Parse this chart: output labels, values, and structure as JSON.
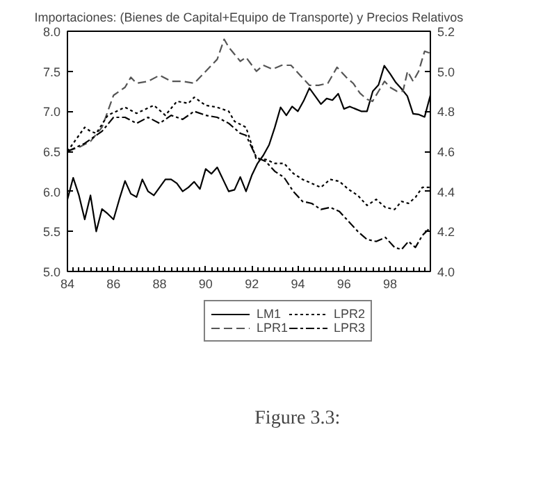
{
  "chart_data": {
    "type": "line",
    "title": "Importaciones: (Bienes de Capital+Equipo de Transporte) y Precios Relativos",
    "annotations": [
      "Figure 3.3:"
    ],
    "xlim": [
      84,
      99.75
    ],
    "xticks": [
      84,
      86,
      88,
      90,
      92,
      94,
      96,
      98
    ],
    "ylim": [
      5.0,
      8.0
    ],
    "yticks": [
      {
        "value": 5,
        "label": "5.0"
      },
      {
        "value": 5.5,
        "label": "5.5"
      },
      {
        "value": 6,
        "label": "6.0"
      },
      {
        "value": 6.5,
        "label": "6.5"
      },
      {
        "value": 7,
        "label": "7.0"
      },
      {
        "value": 7.5,
        "label": "7.5"
      },
      {
        "value": 8,
        "label": "8.0"
      }
    ],
    "y2lim": [
      4.0,
      5.2
    ],
    "y2ticks": [
      {
        "value": 4,
        "label": "4.0"
      },
      {
        "value": 4.2,
        "label": "4.2"
      },
      {
        "value": 4.4,
        "label": "4.4"
      },
      {
        "value": 4.6,
        "label": "4.6"
      },
      {
        "value": 4.8,
        "label": "4.8"
      },
      {
        "value": 5,
        "label": "5.0"
      },
      {
        "value": 5.2,
        "label": "5.2"
      }
    ],
    "grid": false,
    "legend": "bottom",
    "series": [
      {
        "name": "LM1",
        "color": "#000000",
        "line_style": "solid",
        "x": [
          84,
          84.25,
          84.5,
          84.75,
          85,
          85.25,
          85.5,
          85.75,
          86,
          86.25,
          86.5,
          86.75,
          87,
          87.25,
          87.5,
          87.75,
          88,
          88.25,
          88.5,
          88.75,
          89,
          89.25,
          89.5,
          89.75,
          90,
          90.25,
          90.5,
          90.75,
          91,
          91.25,
          91.5,
          91.75,
          92,
          92.25,
          92.5,
          92.75,
          93,
          93.25,
          93.5,
          93.75,
          94,
          94.25,
          94.5,
          94.75,
          95,
          95.25,
          95.5,
          95.75,
          96,
          96.25,
          96.5,
          96.75,
          97,
          97.25,
          97.5,
          97.75,
          98,
          98.25,
          98.5,
          98.75,
          99,
          99.25,
          99.5,
          99.75
        ],
        "values": [
          5.9,
          6.17,
          5.95,
          5.65,
          5.95,
          5.5,
          5.78,
          5.72,
          5.65,
          5.9,
          6.13,
          5.97,
          5.93,
          6.15,
          6.0,
          5.95,
          6.05,
          6.15,
          6.15,
          6.1,
          6.0,
          6.05,
          6.12,
          6.03,
          6.28,
          6.22,
          6.3,
          6.15,
          6.0,
          6.02,
          6.18,
          6.0,
          6.2,
          6.35,
          6.45,
          6.58,
          6.8,
          7.05,
          6.95,
          7.06,
          7.0,
          7.13,
          7.29,
          7.19,
          7.09,
          7.16,
          7.14,
          7.22,
          7.03,
          7.06,
          7.03,
          7.0,
          7.0,
          7.25,
          7.33,
          7.57,
          7.47,
          7.36,
          7.28,
          7.19,
          6.97,
          6.96,
          6.93,
          7.2
        ]
      },
      {
        "name": "LPR1",
        "color": "#555555",
        "axis": "y2",
        "line_style": "dashed",
        "x": [
          84,
          84.5,
          85,
          85.5,
          86,
          86.5,
          86.75,
          87,
          87.5,
          88,
          88.5,
          89,
          89.5,
          90,
          90.5,
          90.8,
          91,
          91.5,
          91.75,
          92.2,
          92.5,
          92.9,
          93.3,
          93.7,
          94.1,
          94.5,
          94.9,
          95.3,
          95.7,
          96.1,
          96.4,
          96.7,
          97.0,
          97.24,
          97.5,
          97.76,
          98.0,
          98.3,
          98.56,
          98.76,
          99.0,
          99.24,
          99.5,
          99.75
        ],
        "values": [
          4.6,
          4.62,
          4.65,
          4.72,
          4.88,
          4.92,
          4.97,
          4.94,
          4.95,
          4.98,
          4.95,
          4.95,
          4.94,
          5.0,
          5.06,
          5.16,
          5.12,
          5.05,
          5.07,
          5.0,
          5.03,
          5.01,
          5.03,
          5.03,
          4.98,
          4.93,
          4.93,
          4.94,
          5.02,
          4.97,
          4.94,
          4.89,
          4.86,
          4.85,
          4.9,
          4.95,
          4.92,
          4.9,
          4.9,
          5.0,
          4.95,
          5.0,
          5.1,
          5.09
        ]
      },
      {
        "name": "LPR2",
        "color": "#000000",
        "axis": "y2",
        "line_style": "dotted",
        "x": [
          84,
          84.75,
          85,
          85.25,
          85.75,
          86.5,
          87,
          87.75,
          88.25,
          88.75,
          89.25,
          89.5,
          90,
          90.5,
          91,
          91.25,
          91.75,
          92.2,
          92.6,
          93.0,
          93.4,
          93.8,
          94.2,
          94.6,
          95.0,
          95.4,
          95.8,
          96.2,
          96.6,
          97.0,
          97.4,
          97.8,
          98.2,
          98.5,
          98.8,
          99.1,
          99.4,
          99.75
        ],
        "values": [
          4.6,
          4.72,
          4.7,
          4.69,
          4.78,
          4.82,
          4.79,
          4.83,
          4.78,
          4.85,
          4.84,
          4.87,
          4.83,
          4.82,
          4.8,
          4.75,
          4.72,
          4.56,
          4.56,
          4.54,
          4.54,
          4.49,
          4.46,
          4.44,
          4.42,
          4.46,
          4.45,
          4.41,
          4.38,
          4.33,
          4.36,
          4.32,
          4.31,
          4.35,
          4.34,
          4.37,
          4.42,
          4.42
        ]
      },
      {
        "name": "LPR3",
        "color": "#000000",
        "axis": "y2",
        "line_style": "dashdot",
        "x": [
          84,
          84.75,
          85,
          85.5,
          86,
          86.5,
          87,
          87.5,
          88,
          88.5,
          89,
          89.5,
          90,
          90.5,
          91,
          91.5,
          91.75,
          92.2,
          92.6,
          93.0,
          93.4,
          93.8,
          94.2,
          94.6,
          95.0,
          95.4,
          95.8,
          96.2,
          96.6,
          97.0,
          97.4,
          97.8,
          98.2,
          98.5,
          98.8,
          99.1,
          99.4,
          99.75
        ],
        "values": [
          4.6,
          4.64,
          4.66,
          4.7,
          4.77,
          4.77,
          4.74,
          4.77,
          4.74,
          4.78,
          4.76,
          4.8,
          4.78,
          4.77,
          4.74,
          4.69,
          4.68,
          4.57,
          4.55,
          4.5,
          4.47,
          4.4,
          4.35,
          4.34,
          4.31,
          4.32,
          4.3,
          4.25,
          4.2,
          4.16,
          4.15,
          4.17,
          4.12,
          4.11,
          4.15,
          4.12,
          4.18,
          4.22
        ]
      }
    ]
  }
}
